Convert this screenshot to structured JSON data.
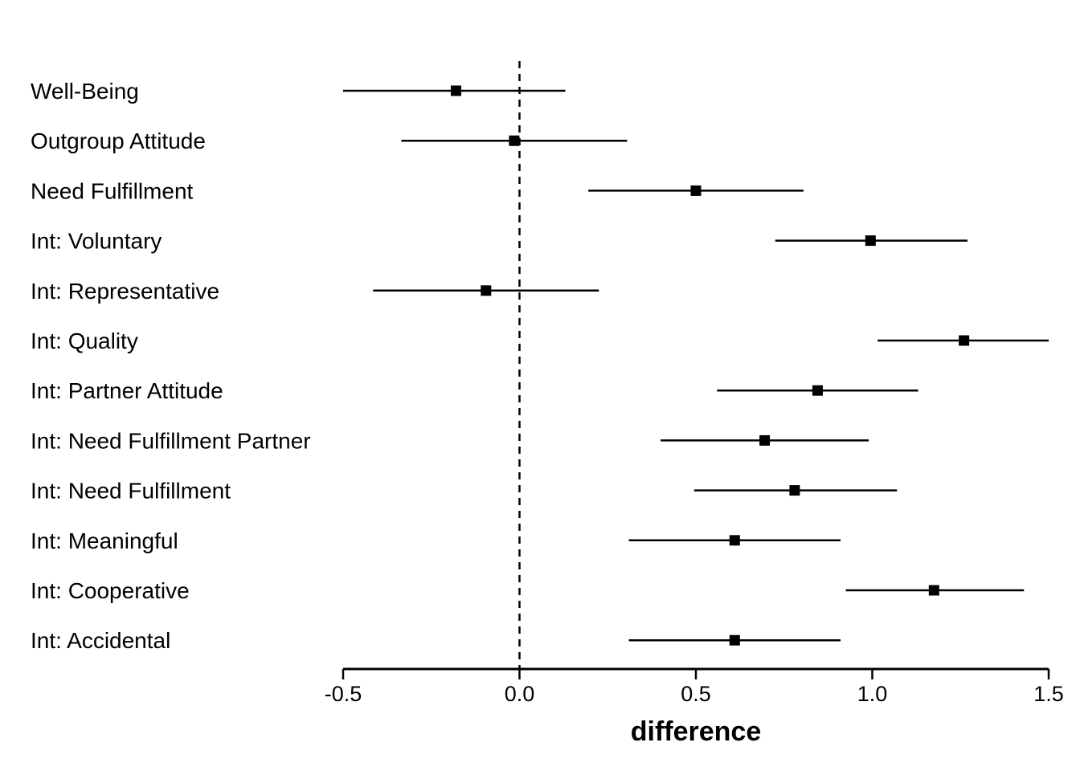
{
  "chart_data": {
    "type": "scatter",
    "subtype": "forest-plot",
    "title": "",
    "xlabel": "difference",
    "ylabel": "",
    "xlim": [
      -0.5,
      1.5
    ],
    "xticks": [
      -0.5,
      0.0,
      0.5,
      1.0,
      1.5
    ],
    "xtick_labels": [
      "-0.5",
      "0.0",
      "0.5",
      "1.0",
      "1.5"
    ],
    "reference_line": 0.0,
    "grid": false,
    "rows": [
      {
        "label": "Well-Being",
        "estimate": -0.18,
        "lower": -0.5,
        "upper": 0.13
      },
      {
        "label": "Outgroup Attitude",
        "estimate": -0.015,
        "lower": -0.335,
        "upper": 0.305
      },
      {
        "label": "Need Fulfillment",
        "estimate": 0.5,
        "lower": 0.195,
        "upper": 0.805
      },
      {
        "label": "Int: Voluntary",
        "estimate": 0.995,
        "lower": 0.725,
        "upper": 1.27
      },
      {
        "label": "Int: Representative",
        "estimate": -0.095,
        "lower": -0.415,
        "upper": 0.225
      },
      {
        "label": "Int: Quality",
        "estimate": 1.26,
        "lower": 1.015,
        "upper": 1.5
      },
      {
        "label": "Int: Partner Attitude",
        "estimate": 0.845,
        "lower": 0.56,
        "upper": 1.13
      },
      {
        "label": "Int: Need Fulfillment Partner",
        "estimate": 0.695,
        "lower": 0.4,
        "upper": 0.99
      },
      {
        "label": "Int: Need Fulfillment",
        "estimate": 0.78,
        "lower": 0.495,
        "upper": 1.07
      },
      {
        "label": "Int: Meaningful",
        "estimate": 0.61,
        "lower": 0.31,
        "upper": 0.91
      },
      {
        "label": "Int: Cooperative",
        "estimate": 1.175,
        "lower": 0.925,
        "upper": 1.43
      },
      {
        "label": "Int: Accidental",
        "estimate": 0.61,
        "lower": 0.31,
        "upper": 0.91
      }
    ],
    "colors": {
      "line": "#000000",
      "marker": "#000000"
    }
  }
}
